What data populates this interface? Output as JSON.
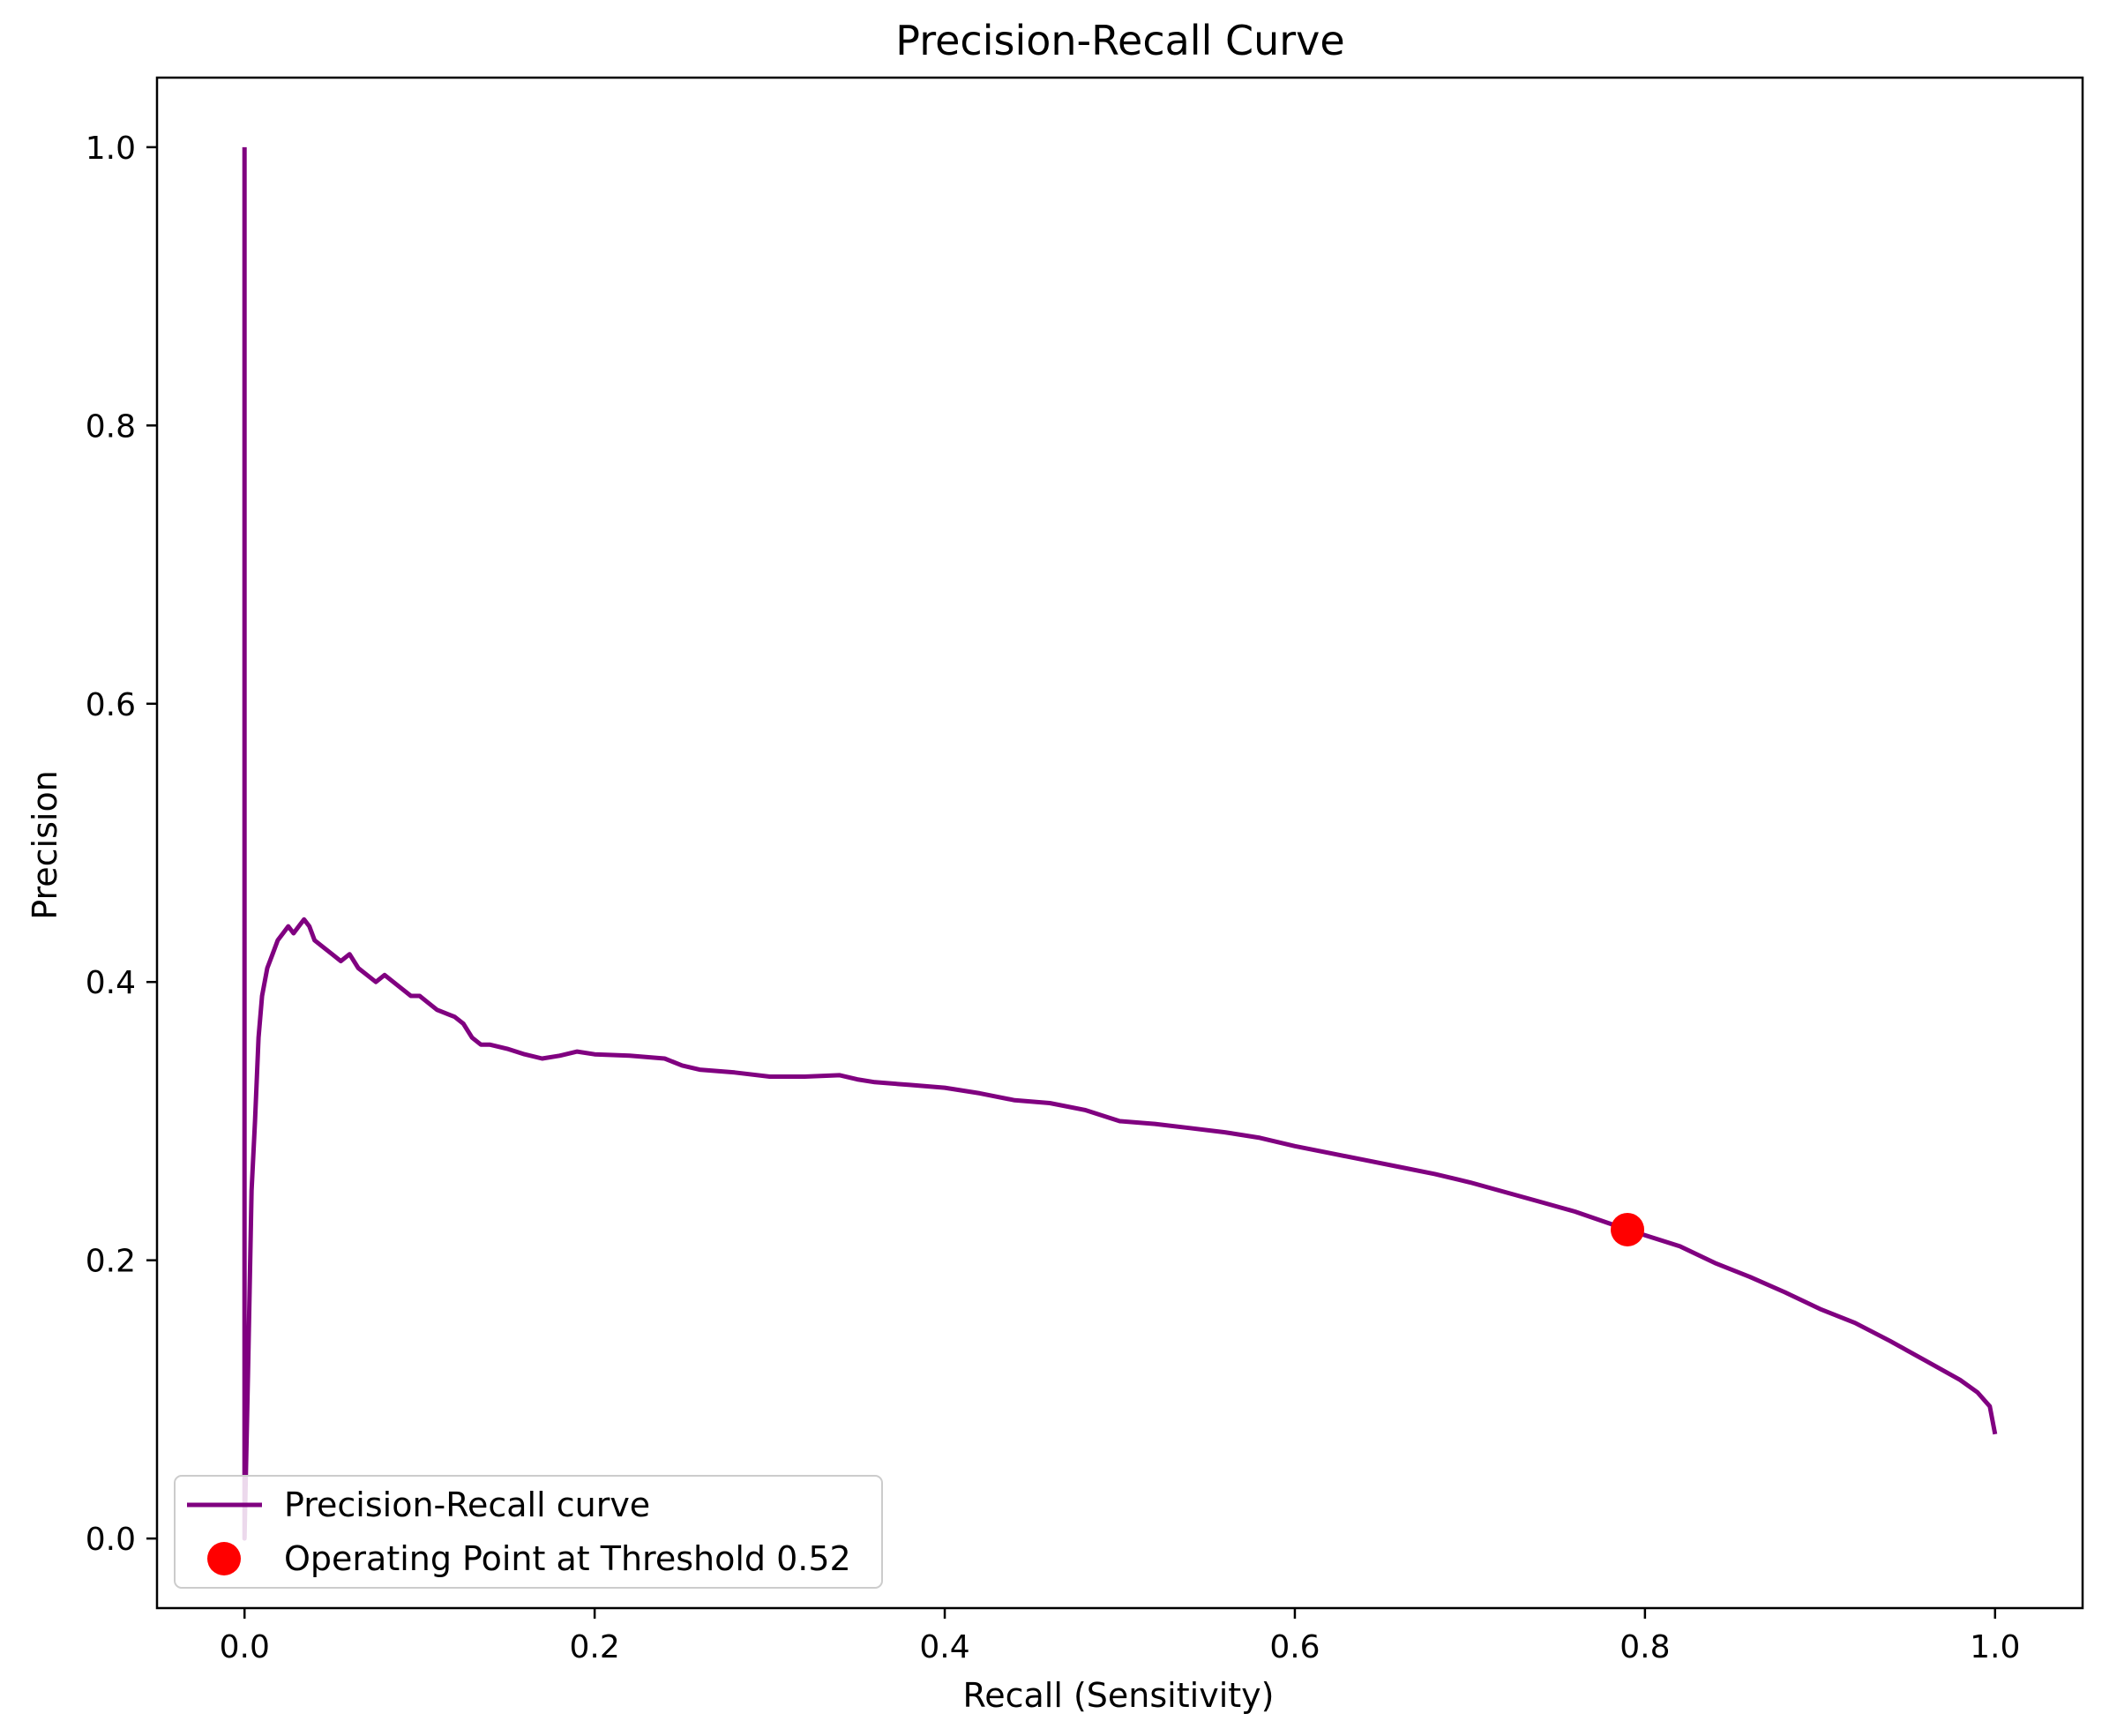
{
  "chart_data": {
    "type": "line",
    "title": "Precision-Recall Curve",
    "xlabel": "Recall (Sensitivity)",
    "ylabel": "Precision",
    "xlim": [
      -0.05,
      1.05
    ],
    "ylim": [
      -0.05,
      1.05
    ],
    "x_ticks": [
      0.0,
      0.2,
      0.4,
      0.6,
      0.8,
      1.0
    ],
    "x_tick_labels": [
      "0.0",
      "0.2",
      "0.4",
      "0.6",
      "0.8",
      "1.0"
    ],
    "y_ticks": [
      0.0,
      0.2,
      0.4,
      0.6,
      0.8,
      1.0
    ],
    "y_tick_labels": [
      "0.0",
      "0.2",
      "0.4",
      "0.6",
      "0.8",
      "1.0"
    ],
    "grid": false,
    "legend_position": "lower-left",
    "series": [
      {
        "name": "Precision-Recall curve",
        "kind": "line",
        "color": "#800080",
        "x": [
          0.0,
          0.0,
          0.0,
          0.0,
          0.0,
          0.002,
          0.004,
          0.006,
          0.008,
          0.01,
          0.013,
          0.016,
          0.019,
          0.022,
          0.025,
          0.028,
          0.031,
          0.034,
          0.037,
          0.04,
          0.045,
          0.05,
          0.055,
          0.06,
          0.065,
          0.07,
          0.075,
          0.08,
          0.085,
          0.09,
          0.095,
          0.1,
          0.105,
          0.11,
          0.12,
          0.125,
          0.13,
          0.135,
          0.14,
          0.15,
          0.16,
          0.17,
          0.18,
          0.19,
          0.2,
          0.22,
          0.24,
          0.25,
          0.26,
          0.28,
          0.3,
          0.32,
          0.34,
          0.35,
          0.36,
          0.38,
          0.4,
          0.42,
          0.44,
          0.46,
          0.48,
          0.5,
          0.52,
          0.54,
          0.56,
          0.58,
          0.6,
          0.62,
          0.64,
          0.66,
          0.68,
          0.7,
          0.72,
          0.74,
          0.76,
          0.79,
          0.82,
          0.84,
          0.86,
          0.88,
          0.9,
          0.92,
          0.94,
          0.96,
          0.98,
          0.99,
          0.997,
          1.0
        ],
        "y": [
          1.0,
          0.6,
          0.2,
          0.05,
          0.0,
          0.12,
          0.25,
          0.3,
          0.36,
          0.39,
          0.41,
          0.42,
          0.43,
          0.435,
          0.44,
          0.435,
          0.44,
          0.445,
          0.44,
          0.43,
          0.425,
          0.42,
          0.415,
          0.42,
          0.41,
          0.405,
          0.4,
          0.405,
          0.4,
          0.395,
          0.39,
          0.39,
          0.385,
          0.38,
          0.375,
          0.37,
          0.36,
          0.355,
          0.355,
          0.352,
          0.348,
          0.345,
          0.347,
          0.35,
          0.348,
          0.347,
          0.345,
          0.34,
          0.337,
          0.335,
          0.332,
          0.332,
          0.333,
          0.33,
          0.328,
          0.326,
          0.324,
          0.32,
          0.315,
          0.313,
          0.308,
          0.3,
          0.298,
          0.295,
          0.292,
          0.288,
          0.282,
          0.277,
          0.272,
          0.267,
          0.262,
          0.256,
          0.249,
          0.242,
          0.235,
          0.222,
          0.21,
          0.198,
          0.188,
          0.177,
          0.165,
          0.155,
          0.142,
          0.128,
          0.114,
          0.105,
          0.095,
          0.075
        ]
      },
      {
        "name": "Operating Point at Threshold 0.52",
        "kind": "marker",
        "color": "#ff0000",
        "x": [
          0.79
        ],
        "y": [
          0.222
        ]
      }
    ]
  }
}
